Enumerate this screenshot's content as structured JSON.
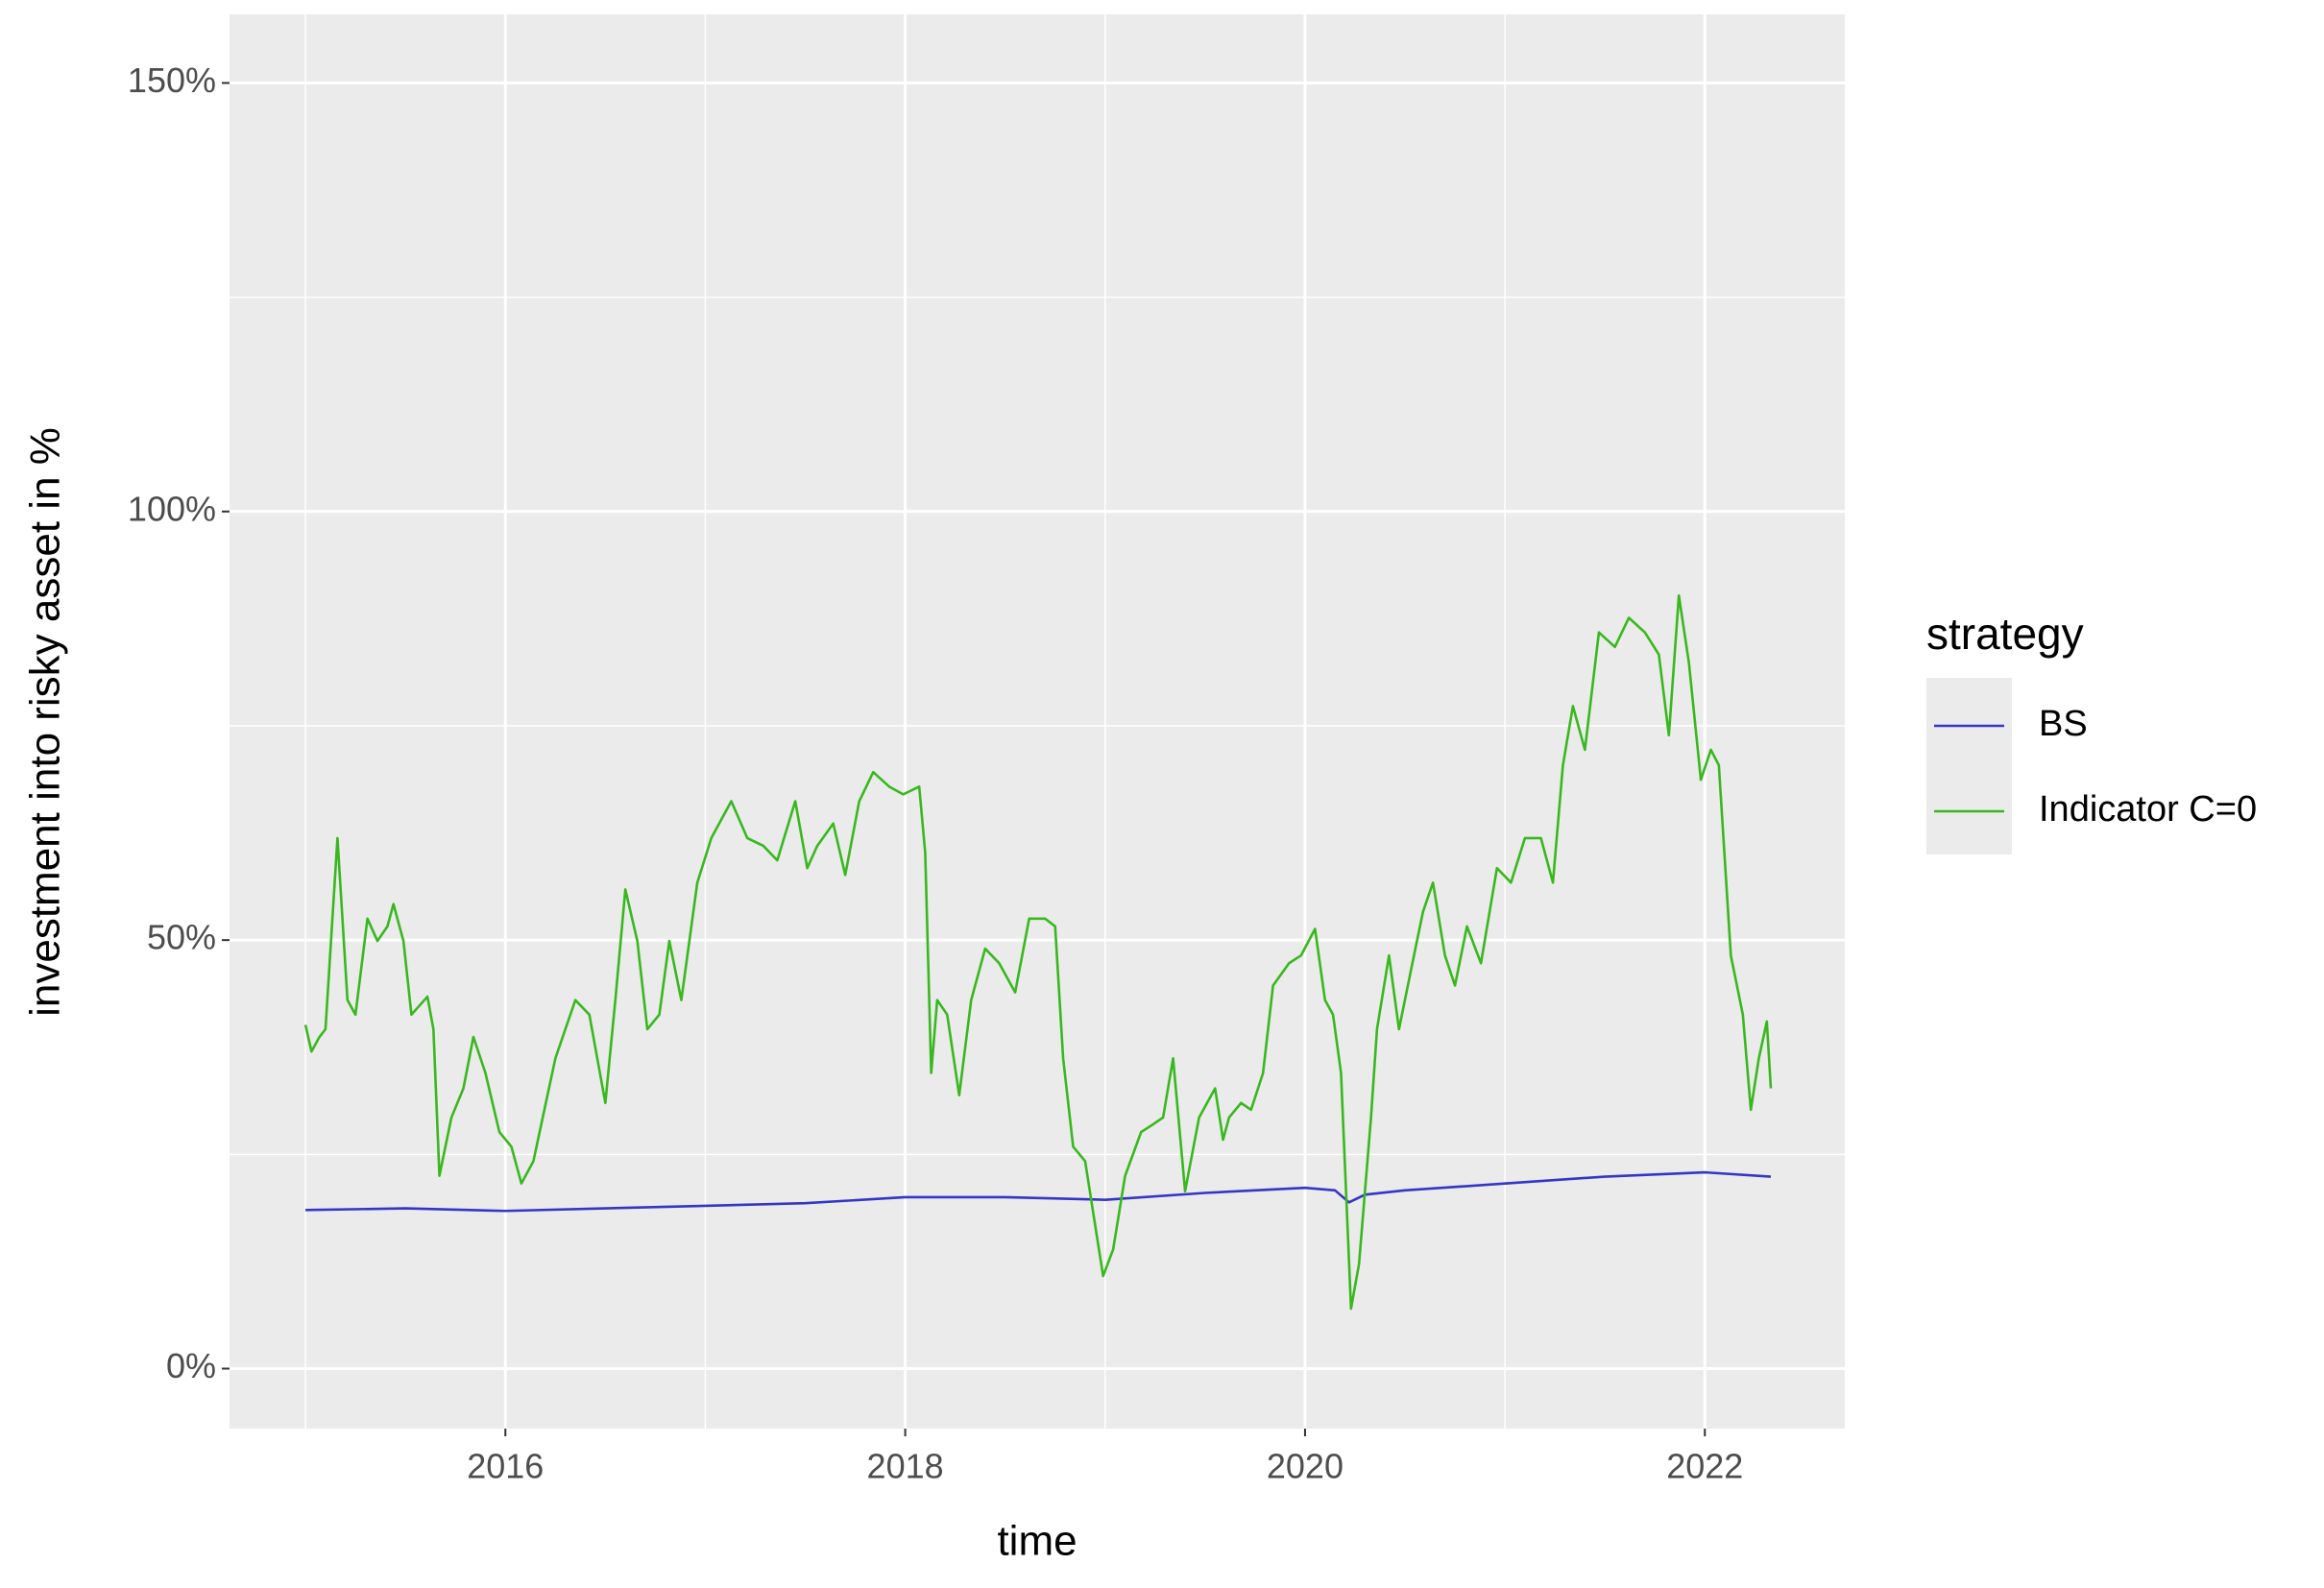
{
  "chart_data": {
    "type": "line",
    "xlabel": "time",
    "ylabel": "investment into risky asset in %",
    "xlim": [
      2014.62,
      2022.7
    ],
    "ylim": [
      -7.0,
      158
    ],
    "xticks": [
      2016,
      2018,
      2020,
      2022
    ],
    "yticks": [
      {
        "value": 0,
        "label": "0%"
      },
      {
        "value": 50,
        "label": "50%"
      },
      {
        "value": 100,
        "label": "100%"
      },
      {
        "value": 150,
        "label": "150%"
      }
    ],
    "x_minor_ticks": [
      2015,
      2017,
      2019,
      2021
    ],
    "y_minor_ticks": [
      25,
      75,
      125
    ],
    "grid": true,
    "legend_title": "strategy",
    "legend_position": "right",
    "series": [
      {
        "name": "BS",
        "color": "#3535c8",
        "x": [
          2015.0,
          2015.5,
          2016.0,
          2016.5,
          2017.0,
          2017.5,
          2018.0,
          2018.5,
          2019.0,
          2019.5,
          2020.0,
          2020.15,
          2020.22,
          2020.3,
          2020.5,
          2021.0,
          2021.5,
          2022.0,
          2022.33
        ],
        "values": [
          18.5,
          18.7,
          18.4,
          18.7,
          19.0,
          19.3,
          20.0,
          20.0,
          19.7,
          20.5,
          21.1,
          20.8,
          19.4,
          20.3,
          20.8,
          21.6,
          22.4,
          22.9,
          22.4
        ]
      },
      {
        "name": "Indicator C=0",
        "color": "#38b81e",
        "x": [
          2015.0,
          2015.03,
          2015.07,
          2015.1,
          2015.16,
          2015.21,
          2015.25,
          2015.31,
          2015.36,
          2015.41,
          2015.44,
          2015.49,
          2015.53,
          2015.61,
          2015.64,
          2015.67,
          2015.73,
          2015.79,
          2015.84,
          2015.9,
          2015.97,
          2016.03,
          2016.08,
          2016.14,
          2016.25,
          2016.35,
          2016.42,
          2016.5,
          2016.55,
          2016.6,
          2016.66,
          2016.71,
          2016.77,
          2016.82,
          2016.88,
          2016.96,
          2017.03,
          2017.13,
          2017.21,
          2017.29,
          2017.36,
          2017.45,
          2017.51,
          2017.56,
          2017.64,
          2017.7,
          2017.77,
          2017.84,
          2017.92,
          2017.99,
          2018.07,
          2018.1,
          2018.13,
          2018.16,
          2018.21,
          2018.27,
          2018.33,
          2018.4,
          2018.47,
          2018.55,
          2018.62,
          2018.7,
          2018.75,
          2018.79,
          2018.84,
          2018.9,
          2018.99,
          2019.04,
          2019.1,
          2019.18,
          2019.24,
          2019.29,
          2019.34,
          2019.4,
          2019.47,
          2019.55,
          2019.59,
          2019.62,
          2019.68,
          2019.73,
          2019.79,
          2019.84,
          2019.92,
          2019.98,
          2020.05,
          2020.1,
          2020.14,
          2020.18,
          2020.23,
          2020.27,
          2020.33,
          2020.36,
          2020.42,
          2020.47,
          2020.53,
          2020.59,
          2020.64,
          2020.7,
          2020.75,
          2020.81,
          2020.88,
          2020.96,
          2021.03,
          2021.1,
          2021.18,
          2021.24,
          2021.29,
          2021.34,
          2021.4,
          2021.47,
          2021.55,
          2021.62,
          2021.7,
          2021.77,
          2021.82,
          2021.87,
          2021.92,
          2021.98,
          2022.03,
          2022.07,
          2022.13,
          2022.19,
          2022.23,
          2022.27,
          2022.31,
          2022.33
        ],
        "values": [
          40.1,
          37.0,
          38.7,
          39.6,
          61.9,
          43.0,
          41.3,
          52.5,
          49.9,
          51.6,
          54.2,
          49.9,
          41.3,
          43.4,
          39.6,
          22.5,
          29.3,
          32.7,
          38.7,
          34.5,
          27.6,
          25.9,
          21.6,
          24.2,
          36.2,
          43.0,
          41.3,
          31.0,
          43.0,
          55.9,
          49.9,
          39.6,
          41.3,
          49.9,
          43.0,
          56.7,
          61.9,
          66.2,
          61.9,
          61.0,
          59.3,
          66.2,
          58.4,
          61.0,
          63.6,
          57.6,
          66.2,
          69.6,
          67.9,
          67.0,
          67.9,
          60.2,
          34.5,
          43.0,
          41.3,
          31.9,
          43.0,
          49.0,
          47.3,
          43.9,
          52.5,
          52.5,
          51.6,
          36.2,
          25.9,
          24.2,
          10.8,
          13.9,
          22.5,
          27.6,
          28.5,
          29.3,
          36.2,
          20.7,
          29.3,
          32.7,
          26.7,
          29.3,
          31.0,
          30.2,
          34.5,
          44.7,
          47.3,
          48.2,
          51.3,
          43.0,
          41.3,
          34.5,
          7.0,
          12.2,
          29.3,
          39.6,
          48.2,
          39.6,
          46.5,
          53.3,
          56.7,
          48.2,
          44.7,
          51.6,
          47.3,
          58.4,
          56.7,
          61.9,
          61.9,
          56.7,
          70.4,
          77.3,
          72.2,
          85.9,
          84.2,
          87.6,
          85.9,
          83.3,
          73.9,
          90.2,
          82.4,
          68.7,
          72.2,
          70.4,
          48.2,
          41.3,
          30.2,
          36.2,
          40.5,
          32.7
        ]
      }
    ]
  }
}
